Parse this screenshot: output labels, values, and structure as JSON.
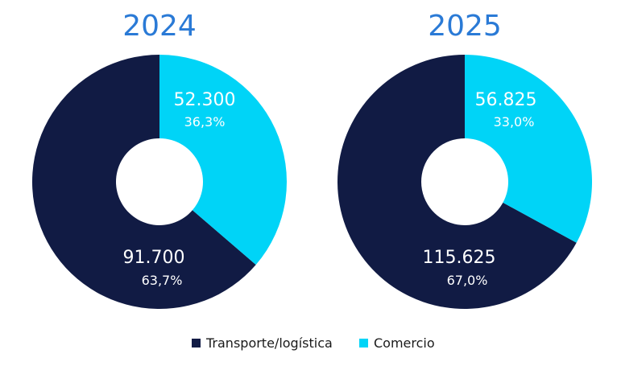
{
  "chart_data": [
    {
      "type": "pie",
      "title": "2024",
      "categories": [
        "Transporte/logística",
        "Comercio"
      ],
      "values": [
        91700,
        52300
      ],
      "value_labels": [
        "91.700",
        "52.300"
      ],
      "percent_labels": [
        "63,7%",
        "36,3%"
      ],
      "donut": true,
      "legend": "bottom"
    },
    {
      "type": "pie",
      "title": "2025",
      "categories": [
        "Transporte/logística",
        "Comercio"
      ],
      "values": [
        115625,
        56825
      ],
      "value_labels": [
        "115.625",
        "56.825"
      ],
      "percent_labels": [
        "67,0%",
        "33,0%"
      ],
      "donut": true,
      "legend": "bottom"
    }
  ],
  "legend": {
    "items": [
      {
        "label": "Transporte/logística",
        "color": "#111b44"
      },
      {
        "label": "Comercio",
        "color": "#00d4f7"
      }
    ]
  },
  "colors": {
    "title": "#2a7ad6",
    "series": [
      "#111b44",
      "#00d4f7"
    ]
  }
}
